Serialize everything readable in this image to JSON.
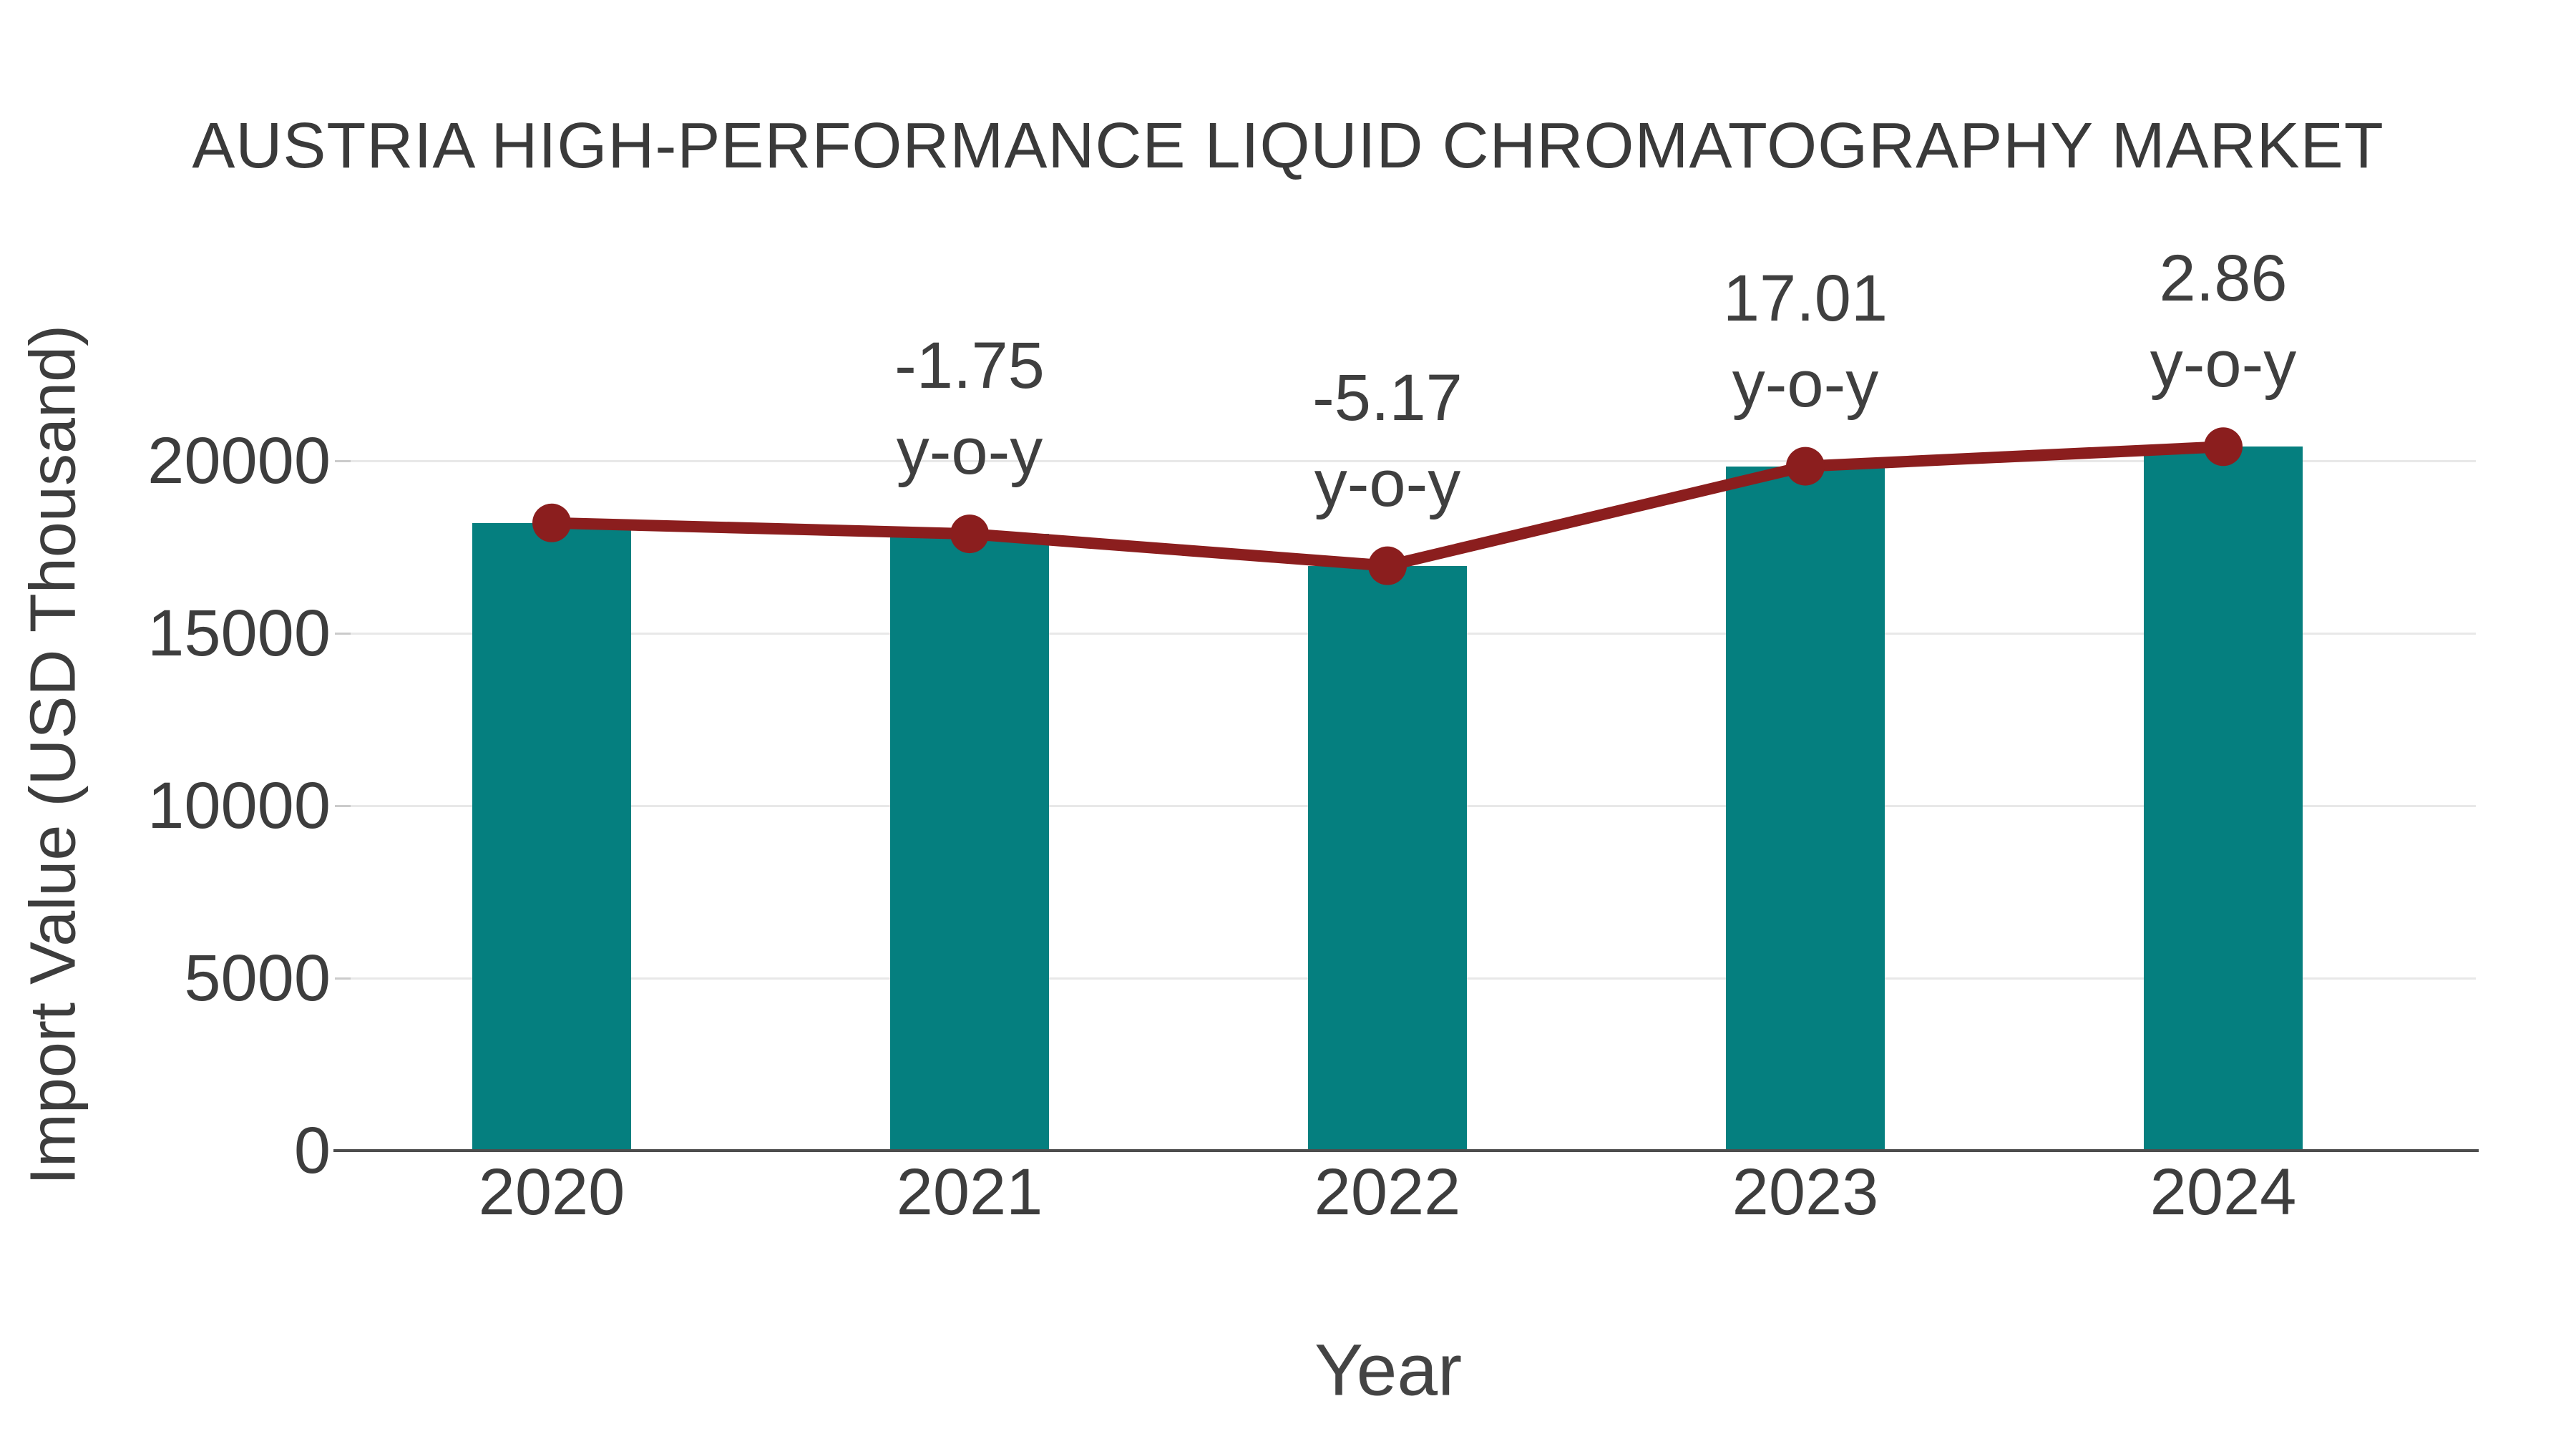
{
  "title": "AUSTRIA HIGH-PERFORMANCE LIQUID CHROMATOGRAPHY MARKET",
  "chart_data": {
    "type": "bar",
    "title": "AUSTRIA HIGH-PERFORMANCE LIQUID CHROMATOGRAPHY MARKET",
    "xlabel": "Year",
    "ylabel": "Import Value (USD Thousand)",
    "categories": [
      "2020",
      "2021",
      "2022",
      "2023",
      "2024"
    ],
    "series": [
      {
        "name": "Import Value",
        "kind": "bar",
        "color": "#057f7f",
        "values": [
          18200,
          17882,
          16957,
          19842,
          20409
        ]
      },
      {
        "name": "y-o-y trend",
        "kind": "line",
        "color": "#8b1e1e",
        "values": [
          18200,
          17882,
          16957,
          19842,
          20409
        ]
      }
    ],
    "annotations": [
      {
        "category": "2021",
        "value_label": "-1.75",
        "suffix": "y-o-y"
      },
      {
        "category": "2022",
        "value_label": "-5.17",
        "suffix": "y-o-y"
      },
      {
        "category": "2023",
        "value_label": "17.01",
        "suffix": "y-o-y"
      },
      {
        "category": "2024",
        "value_label": "2.86",
        "suffix": "y-o-y"
      }
    ],
    "yticks": [
      0,
      5000,
      10000,
      15000,
      20000
    ],
    "ylim": [
      0,
      23000
    ],
    "grid": "horizontal",
    "legend": "none",
    "colors": {
      "bar": "#057f7f",
      "line": "#8b1e1e",
      "marker": "#8b1e1e",
      "text": "#3d3d3d",
      "gridline": "#e8e8e8",
      "axis": "#4d4d4d"
    }
  }
}
